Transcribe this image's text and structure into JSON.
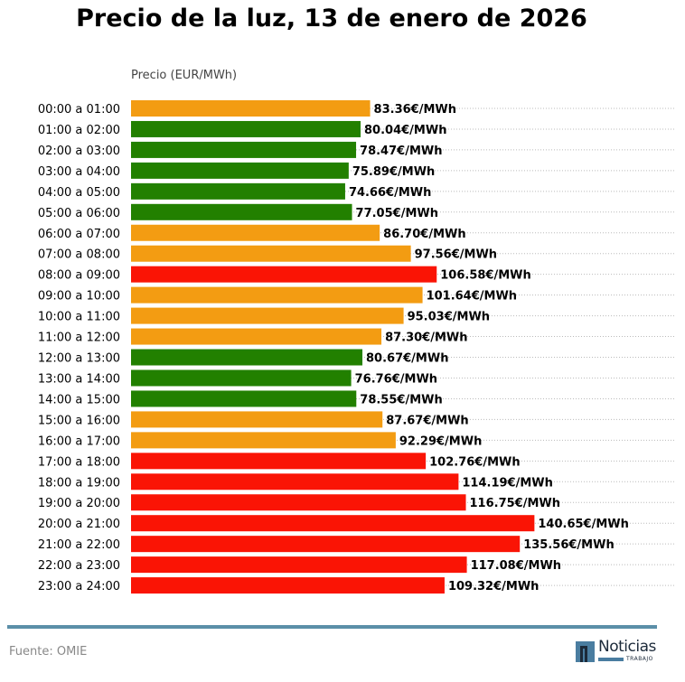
{
  "chart_data": {
    "type": "bar",
    "orientation": "horizontal",
    "title": "Precio de la luz, 13 de enero de 2026",
    "xlabel": "Precio (EUR/MWh)",
    "ylabel": "",
    "xlim": [
      0,
      190
    ],
    "grid": "horizontal dotted",
    "value_suffix": "€/MWh",
    "categories": [
      "00:00 a 01:00",
      "01:00 a 02:00",
      "02:00 a 03:00",
      "03:00 a 04:00",
      "04:00 a 05:00",
      "05:00 a 06:00",
      "06:00 a 07:00",
      "07:00 a 08:00",
      "08:00 a 09:00",
      "09:00 a 10:00",
      "10:00 a 11:00",
      "11:00 a 12:00",
      "12:00 a 13:00",
      "13:00 a 14:00",
      "14:00 a 15:00",
      "15:00 a 16:00",
      "16:00 a 17:00",
      "17:00 a 18:00",
      "18:00 a 19:00",
      "19:00 a 20:00",
      "20:00 a 21:00",
      "21:00 a 22:00",
      "22:00 a 23:00",
      "23:00 a 24:00"
    ],
    "values": [
      83.36,
      80.04,
      78.47,
      75.89,
      74.66,
      77.05,
      86.7,
      97.56,
      106.58,
      101.64,
      95.03,
      87.3,
      80.67,
      76.76,
      78.55,
      87.67,
      92.29,
      102.76,
      114.19,
      116.75,
      140.65,
      135.56,
      117.08,
      109.32
    ],
    "levels": [
      "mid",
      "low",
      "low",
      "low",
      "low",
      "low",
      "mid",
      "mid",
      "high",
      "mid",
      "mid",
      "mid",
      "low",
      "low",
      "low",
      "mid",
      "mid",
      "high",
      "high",
      "high",
      "high",
      "high",
      "high",
      "high"
    ],
    "colors": {
      "low": "#228000",
      "mid": "#f39c12",
      "high": "#fa1405"
    }
  },
  "footer": {
    "source": "Fuente: OMIE",
    "logo_text": "Noticias",
    "logo_subtext": "TRABAJO"
  }
}
